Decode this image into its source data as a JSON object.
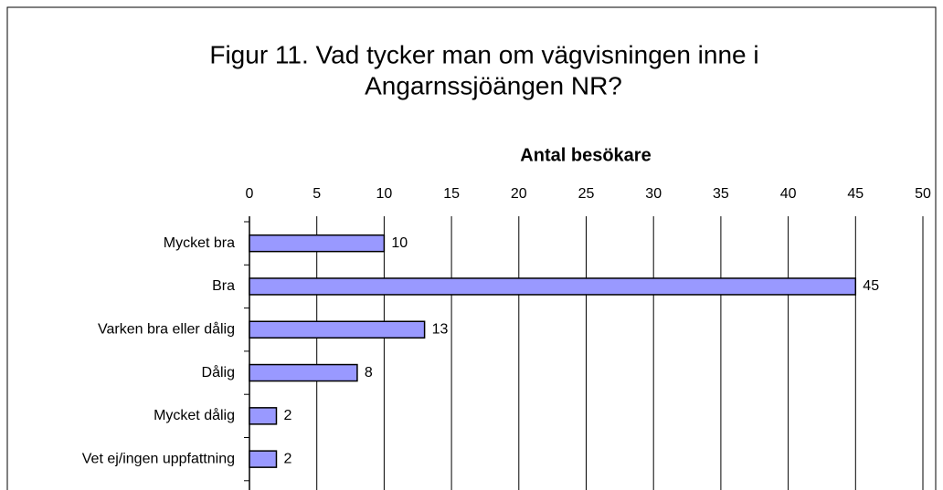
{
  "chart_data": {
    "type": "bar",
    "orientation": "horizontal",
    "title": [
      "Figur 11. Vad tycker man om vägvisningen inne i",
      "Angarnssjöängen NR?"
    ],
    "x_label": "Antal besökare",
    "categories": [
      "Mycket bra",
      "Bra",
      "Varken bra eller dålig",
      "Dålig",
      "Mycket dålig",
      "Vet ej/ingen uppfattning"
    ],
    "values": [
      10,
      45,
      13,
      8,
      2,
      2
    ],
    "color": "#9999ff",
    "xlim": [
      0,
      50
    ],
    "xticks": [
      0,
      5,
      10,
      15,
      20,
      25,
      30,
      35,
      40,
      45,
      50
    ],
    "grid": true
  }
}
